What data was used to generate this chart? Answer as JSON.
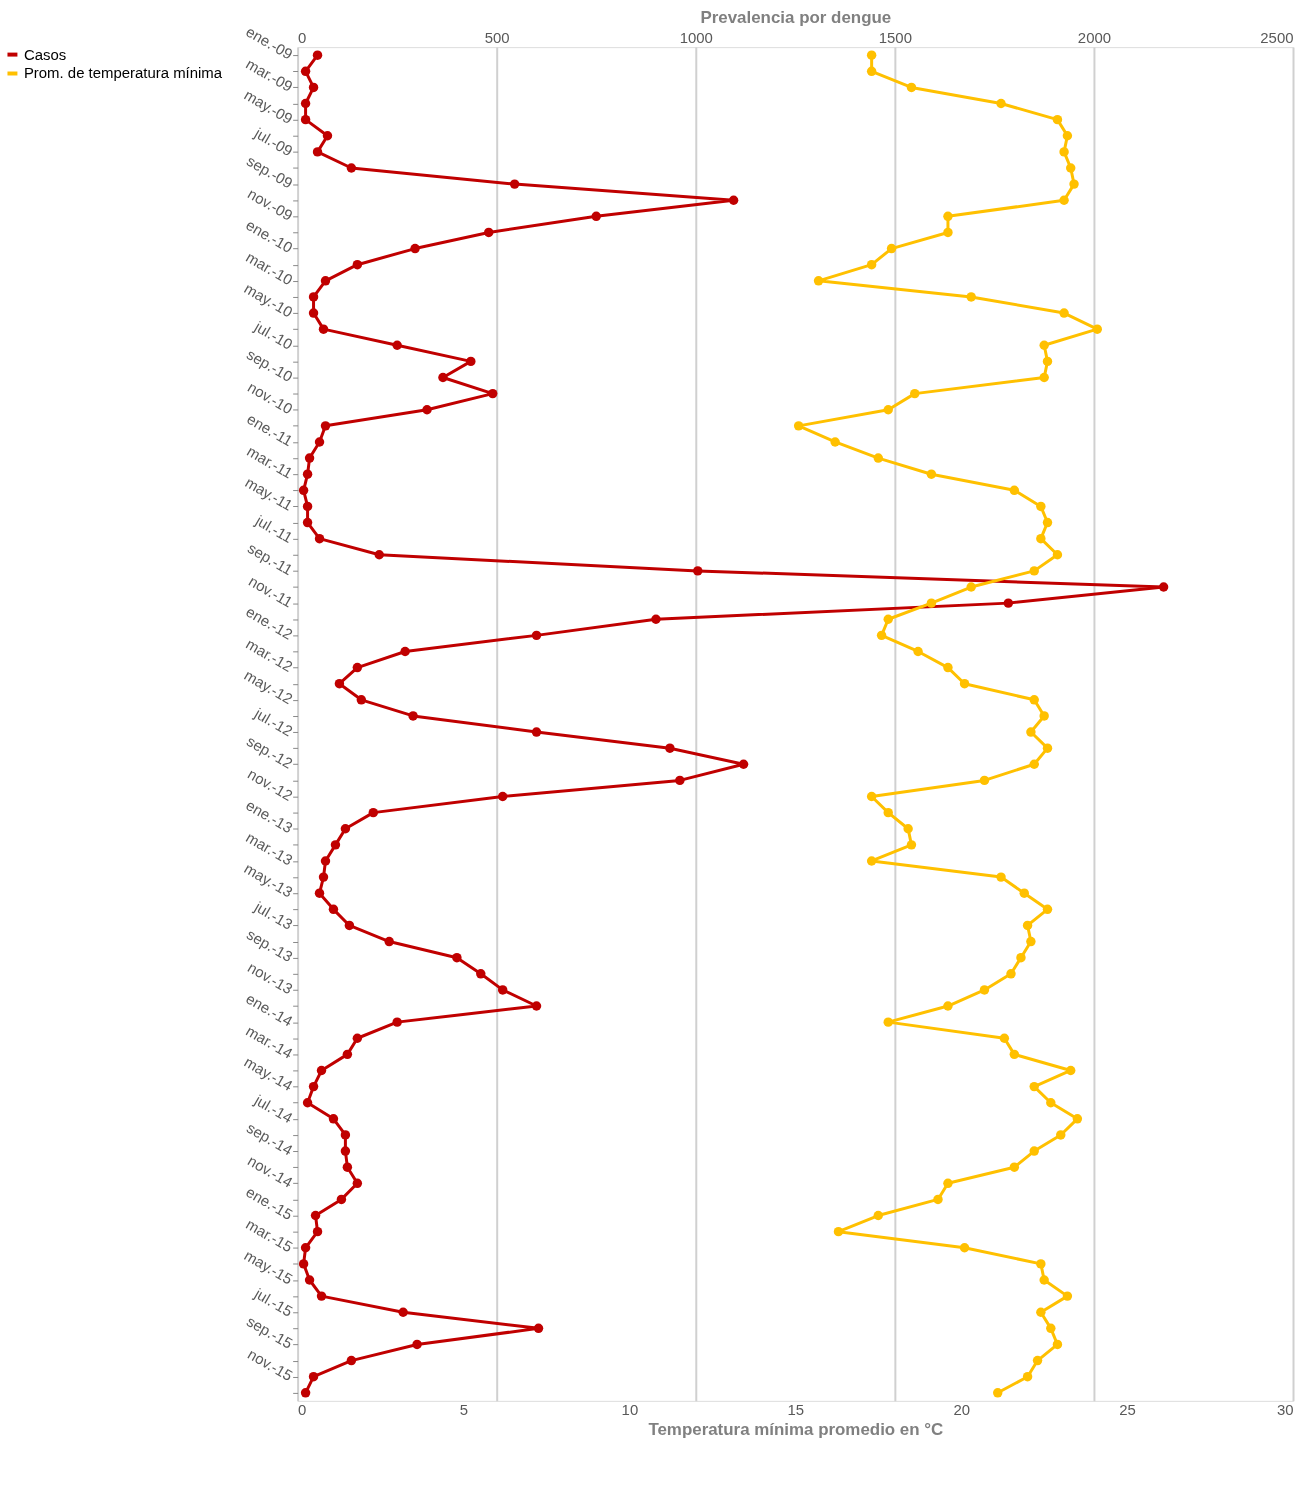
{
  "chart_data": {
    "type": "line",
    "x2label": "Prevalencia por dengue",
    "xlabel": "Temperatura mínima promedio en °C",
    "categories": [
      "ene.-09",
      null,
      "mar.-09",
      null,
      "may.-09",
      null,
      "jul.-09",
      null,
      "sep.-09",
      null,
      "nov.-09",
      null,
      "ene.-10",
      null,
      "mar.-10",
      null,
      "may.-10",
      null,
      "jul.-10",
      null,
      "sep.-10",
      null,
      "nov.-10",
      null,
      "ene.-11",
      null,
      "mar.-11",
      null,
      "may.-11",
      null,
      "jul.-11",
      null,
      "sep.-11",
      null,
      "nov.-11",
      null,
      "ene.-12",
      null,
      "mar.-12",
      null,
      "may.-12",
      null,
      "jul.-12",
      null,
      "sep.-12",
      null,
      "nov.-12",
      null,
      "ene.-13",
      null,
      "mar.-13",
      null,
      "may.-13",
      null,
      "jul.-13",
      null,
      "sep.-13",
      null,
      "nov.-13",
      null,
      "ene.-14",
      null,
      "mar.-14",
      null,
      "may.-14",
      null,
      "jul.-14",
      null,
      "sep.-14",
      null,
      "nov.-14",
      null,
      "ene.-15",
      null,
      "mar.-15",
      null,
      "may.-15",
      null,
      "jul.-15",
      null,
      "sep.-15",
      null,
      "nov.-15",
      null
    ],
    "x2lim": [
      0,
      2500
    ],
    "x2ticks": [
      0,
      500,
      1000,
      1500,
      2000,
      2500
    ],
    "xlim": [
      0,
      30
    ],
    "xticks": [
      0,
      5,
      10,
      15,
      20,
      25,
      30
    ],
    "orientation": "horizontal",
    "grid": "x2",
    "legend": "left",
    "marker": "circle",
    "line_style": "solid",
    "series": [
      {
        "name": "Casos",
        "color": "#c00000",
        "axis": "x2",
        "values": [
          50,
          20,
          40,
          20,
          20,
          75,
          50,
          135,
          545,
          1095,
          750,
          480,
          295,
          150,
          70,
          40,
          40,
          65,
          250,
          435,
          365,
          490,
          325,
          70,
          55,
          30,
          25,
          15,
          25,
          25,
          55,
          205,
          1005,
          2175,
          1785,
          900,
          600,
          270,
          150,
          105,
          160,
          290,
          600,
          935,
          1120,
          960,
          515,
          190,
          120,
          95,
          70,
          65,
          55,
          90,
          130,
          230,
          400,
          460,
          515,
          600,
          250,
          150,
          125,
          60,
          40,
          25,
          90,
          120,
          120,
          125,
          150,
          110,
          45,
          50,
          20,
          15,
          30,
          60,
          265,
          605,
          300,
          135,
          40,
          20
        ]
      },
      {
        "name": "Prom. de temperatura mínima",
        "color": "#ffc000",
        "values": [
          17.3,
          17.3,
          18.5,
          21.2,
          22.9,
          23.2,
          23.1,
          23.3,
          23.4,
          23.1,
          19.6,
          19.6,
          17.9,
          17.3,
          15.7,
          20.3,
          23.1,
          24.1,
          22.5,
          22.6,
          22.5,
          18.6,
          17.8,
          15.1,
          16.2,
          17.5,
          19.1,
          21.6,
          22.4,
          22.6,
          22.4,
          22.9,
          22.2,
          20.3,
          19.1,
          17.8,
          17.6,
          18.7,
          19.6,
          20.1,
          22.2,
          22.5,
          22.1,
          22.6,
          22.2,
          20.7,
          17.3,
          17.8,
          18.4,
          18.5,
          17.3,
          21.2,
          21.9,
          22.6,
          22.0,
          22.1,
          21.8,
          21.5,
          20.7,
          19.6,
          17.8,
          21.3,
          21.6,
          23.3,
          22.2,
          22.7,
          23.5,
          23.0,
          22.2,
          21.6,
          19.6,
          19.3,
          17.5,
          16.3,
          20.1,
          22.4,
          22.5,
          23.2,
          22.4,
          22.7,
          22.9,
          22.3,
          22.0,
          21.1
        ]
      }
    ]
  }
}
